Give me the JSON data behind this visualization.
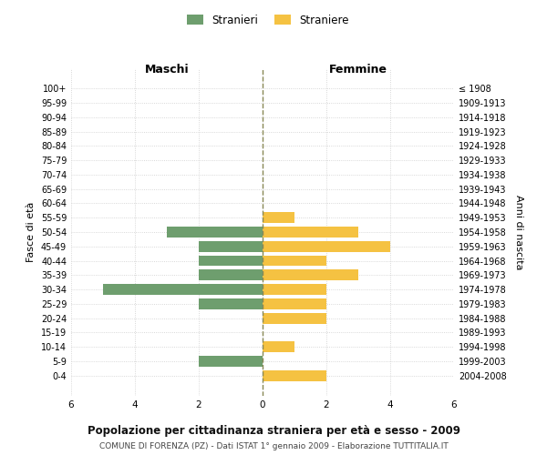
{
  "age_groups": [
    "100+",
    "95-99",
    "90-94",
    "85-89",
    "80-84",
    "75-79",
    "70-74",
    "65-69",
    "60-64",
    "55-59",
    "50-54",
    "45-49",
    "40-44",
    "35-39",
    "30-34",
    "25-29",
    "20-24",
    "15-19",
    "10-14",
    "5-9",
    "0-4"
  ],
  "birth_years": [
    "≤ 1908",
    "1909-1913",
    "1914-1918",
    "1919-1923",
    "1924-1928",
    "1929-1933",
    "1934-1938",
    "1939-1943",
    "1944-1948",
    "1949-1953",
    "1954-1958",
    "1959-1963",
    "1964-1968",
    "1969-1973",
    "1974-1978",
    "1979-1983",
    "1984-1988",
    "1989-1993",
    "1994-1998",
    "1999-2003",
    "2004-2008"
  ],
  "maschi": [
    0,
    0,
    0,
    0,
    0,
    0,
    0,
    0,
    0,
    0,
    3,
    2,
    2,
    2,
    5,
    2,
    0,
    0,
    0,
    2,
    0
  ],
  "femmine": [
    0,
    0,
    0,
    0,
    0,
    0,
    0,
    0,
    0,
    1,
    3,
    4,
    2,
    3,
    2,
    2,
    2,
    0,
    1,
    0,
    2
  ],
  "male_color": "#6e9e6e",
  "female_color": "#f5c242",
  "title": "Popolazione per cittadinanza straniera per età e sesso - 2009",
  "subtitle": "COMUNE DI FORENZA (PZ) - Dati ISTAT 1° gennaio 2009 - Elaborazione TUTTITALIA.IT",
  "xlabel_left": "Maschi",
  "xlabel_right": "Femmine",
  "ylabel_left": "Fasce di età",
  "ylabel_right": "Anni di nascita",
  "legend_male": "Stranieri",
  "legend_female": "Straniere",
  "xlim": 6,
  "background_color": "#ffffff",
  "grid_color": "#cccccc",
  "center_line_color": "#888855"
}
